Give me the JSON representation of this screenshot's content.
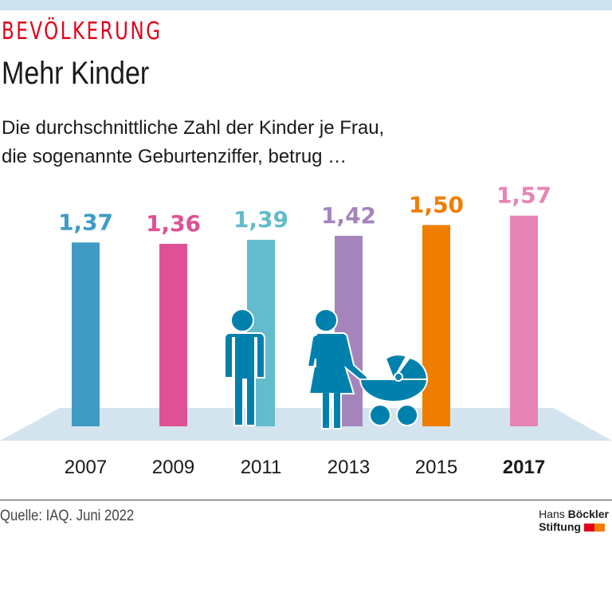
{
  "header": {
    "kicker": "BEVÖLKERUNG",
    "title": "Mehr Kinder",
    "subtitle_line1": "Die durchschnittliche Zahl der Kinder je Frau,",
    "subtitle_line2": "die sogenannte Geburtenziffer, betrug …"
  },
  "chart_data": {
    "type": "bar",
    "categories": [
      "2007",
      "2009",
      "2011",
      "2013",
      "2015",
      "2017"
    ],
    "values": [
      1.37,
      1.36,
      1.39,
      1.42,
      1.5,
      1.57
    ],
    "data_labels": [
      "1,37",
      "1,36",
      "1,39",
      "1,42",
      "1,50",
      "1,57"
    ],
    "colors": [
      "#3f9bc4",
      "#df5195",
      "#62bccb",
      "#a584bc",
      "#ef7d00",
      "#e784b5"
    ],
    "highlight_category": "2017",
    "ylim": [
      0,
      1.6
    ]
  },
  "footer": {
    "source": "Quelle: IAQ. Juni 2022",
    "logo_line1a": "Hans ",
    "logo_line1b": "Böckler",
    "logo_line2": "Stiftung"
  }
}
